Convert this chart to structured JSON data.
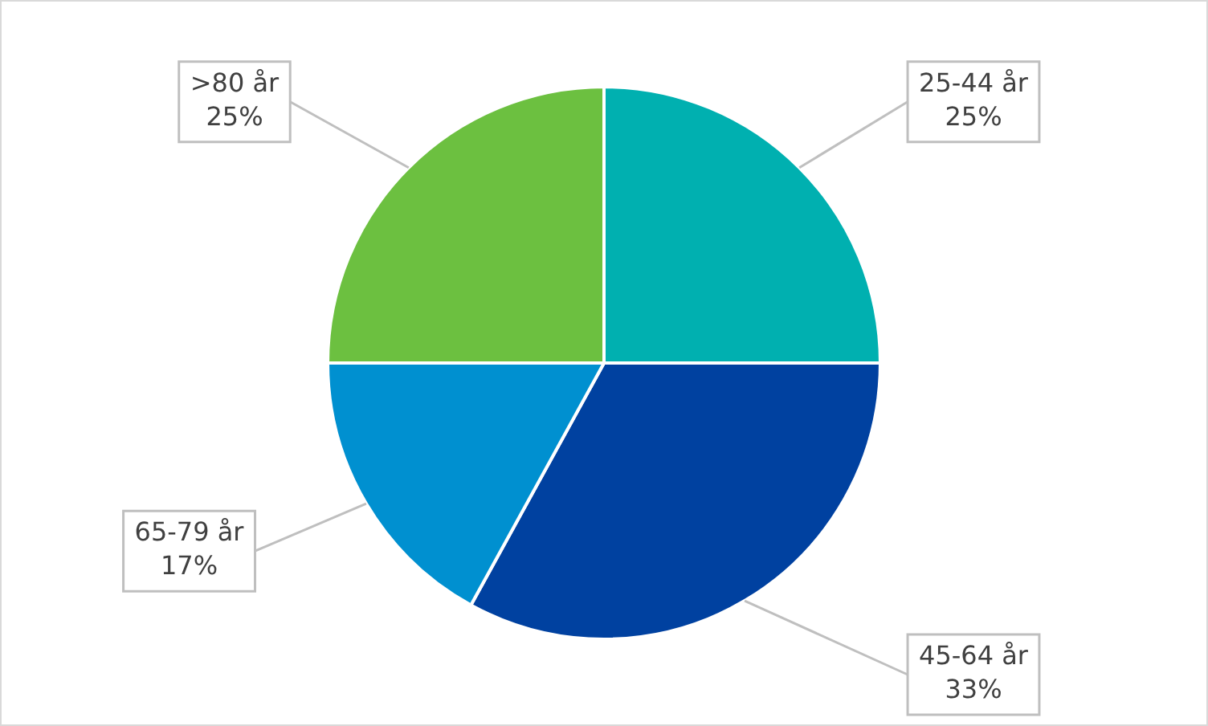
{
  "chart_data": {
    "type": "pie",
    "categories": [
      "25-44 år",
      "45-64 år",
      "65-79 år",
      ">80 år"
    ],
    "values": [
      25,
      33,
      17,
      25
    ],
    "value_labels": [
      "25%",
      "33%",
      "17%",
      "25%"
    ],
    "colors": [
      "#00b0b0",
      "#0041a0",
      "#0090d0",
      "#6cc040"
    ],
    "legend": false
  }
}
